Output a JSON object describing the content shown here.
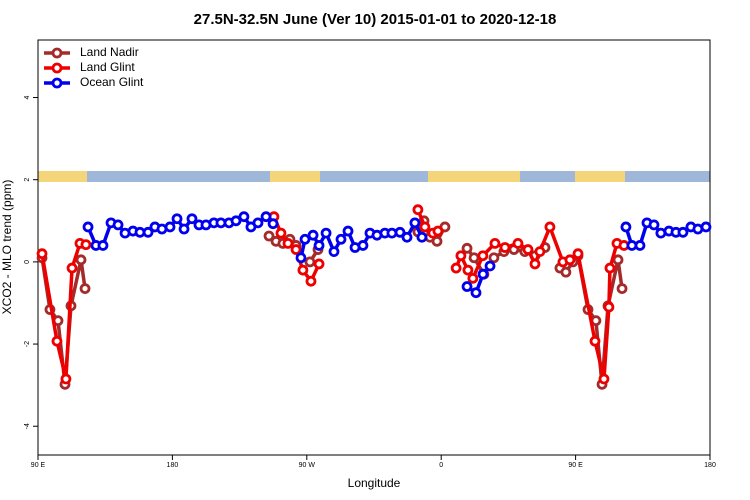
{
  "chart_data": {
    "type": "line",
    "title": "27.5N-32.5N June (Ver 10)   2015-01-01 to 2020-12-18",
    "x_label": "Longitude",
    "y_label": "XCO2 - MLO trend (ppm)",
    "xlim": [
      90,
      540
    ],
    "ylim": [
      -4.7,
      5.4
    ],
    "xticks": [
      {
        "value": 90,
        "label": "90 E"
      },
      180,
      {
        "value": 270,
        "label": "90 W"
      },
      {
        "value": 360,
        "label": "0"
      },
      {
        "value": 450,
        "label": "90 E"
      },
      {
        "value": 540,
        "label": "180"
      }
    ],
    "yticks": [
      -4,
      -2,
      0,
      2,
      4
    ],
    "legend": "upper left",
    "series": [
      {
        "name": "Land Nadir",
        "color": "#a52a2a",
        "x": [
          92.7,
          98.0,
          103.4,
          108.1,
          112.1,
          118.8,
          121.5,
          null,
          244.7,
          249.4,
          254.0,
          258.7,
          262.8,
          null,
          272.1,
          277.5,
          null,
          344.4,
          348.5,
          352.5,
          357.2,
          362.5,
          null,
          377.3,
          382.0,
          388.6,
          395.3,
          402.0,
          408.7,
          416.0,
          422.8,
          429.5,
          null,
          439.5,
          443.5,
          448.2,
          451.6,
          458.3,
          463.6,
          467.7,
          471.7,
          478.4,
          481.1
        ],
        "values": [
          0.1,
          -1.16,
          -1.43,
          -2.98,
          -1.07,
          0.05,
          -0.65,
          null,
          0.63,
          0.5,
          0.45,
          0.55,
          0.4,
          null,
          0.0,
          0.3,
          null,
          0.73,
          1.0,
          0.6,
          0.5,
          0.85,
          null,
          0.33,
          0.1,
          -0.3,
          0.1,
          0.25,
          0.3,
          0.25,
          0.15,
          0.35,
          null,
          -0.15,
          -0.25,
          0.0,
          0.15,
          -1.16,
          -1.43,
          -2.98,
          -1.07,
          0.05,
          -0.65
        ]
      },
      {
        "name": "Land Glint",
        "color": "#ee0000",
        "x": [
          92.7,
          102.7,
          108.7,
          112.8,
          118.1,
          122.1,
          null,
          248.0,
          252.7,
          257.4,
          262.8,
          267.4,
          272.8,
          278.2,
          null,
          344.4,
          349.1,
          354.4,
          357.8,
          null,
          370.0,
          373.2,
          377.9,
          381.2,
          387.9,
          396.0,
          402.7,
          411.4,
          418.1,
          422.8,
          426.1,
          432.8,
          441.5,
          446.2,
          451.6,
          463.0,
          469.0,
          472.3,
          473.0,
          477.7,
          482.4
        ],
        "values": [
          0.2,
          -1.93,
          -2.85,
          -0.15,
          0.45,
          0.42,
          null,
          1.1,
          0.7,
          0.45,
          0.3,
          -0.2,
          -0.47,
          -0.05,
          null,
          1.27,
          0.85,
          0.7,
          0.75,
          null,
          -0.15,
          0.15,
          -0.2,
          -0.4,
          0.15,
          0.45,
          0.35,
          0.45,
          0.3,
          -0.05,
          0.25,
          0.85,
          0.0,
          0.05,
          0.2,
          -1.93,
          -2.85,
          -1.1,
          -0.15,
          0.45,
          0.4
        ]
      },
      {
        "name": "Ocean Glint",
        "color": "#0000ee",
        "x": [
          123.5,
          128.8,
          133.5,
          138.9,
          143.6,
          148.3,
          153.6,
          158.3,
          163.7,
          168.3,
          173.0,
          178.4,
          183.1,
          187.8,
          193.1,
          197.8,
          202.5,
          207.8,
          212.5,
          217.9,
          222.6,
          227.9,
          232.6,
          237.3,
          242.7,
          247.4,
          null,
          266.1,
          268.8,
          274.2,
          278.2,
          282.9,
          288.2,
          292.9,
          297.6,
          302.3,
          307.6,
          312.3,
          317.0,
          322.3,
          327.0,
          332.4,
          337.1,
          342.4,
          347.1,
          null,
          377.3,
          383.3,
          388.0,
          392.7,
          null,
          483.7,
          487.7,
          493.1,
          497.8,
          502.5,
          507.1,
          512.5,
          517.2,
          521.9,
          527.2,
          531.9,
          537.3
        ],
        "values": [
          0.85,
          0.4,
          0.4,
          0.95,
          0.9,
          0.7,
          0.75,
          0.72,
          0.72,
          0.85,
          0.8,
          0.85,
          1.05,
          0.8,
          1.05,
          0.9,
          0.9,
          0.95,
          0.95,
          0.95,
          1.0,
          1.1,
          0.85,
          0.95,
          1.1,
          0.93,
          null,
          0.1,
          0.55,
          0.65,
          0.4,
          0.7,
          0.25,
          0.55,
          0.75,
          0.35,
          0.4,
          0.7,
          0.65,
          0.7,
          0.7,
          0.72,
          0.6,
          0.95,
          0.6,
          null,
          -0.6,
          -0.75,
          -0.3,
          -0.1,
          null,
          0.85,
          0.4,
          0.4,
          0.95,
          0.9,
          0.7,
          0.75,
          0.72,
          0.72,
          0.85,
          0.8,
          0.85
        ]
      }
    ]
  }
}
